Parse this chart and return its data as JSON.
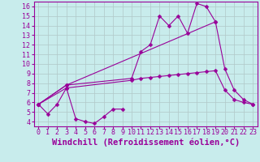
{
  "xlabel": "Windchill (Refroidissement éolien,°C)",
  "bg_color": "#c8ecec",
  "line_color": "#990099",
  "grid_color": "#b0c8c8",
  "xlim": [
    -0.5,
    23.5
  ],
  "ylim": [
    3.5,
    16.5
  ],
  "yticks": [
    4,
    5,
    6,
    7,
    8,
    9,
    10,
    11,
    12,
    13,
    14,
    15,
    16
  ],
  "xticks": [
    0,
    1,
    2,
    3,
    4,
    5,
    6,
    7,
    8,
    9,
    10,
    11,
    12,
    13,
    14,
    15,
    16,
    17,
    18,
    19,
    20,
    21,
    22,
    23
  ],
  "lines": [
    {
      "x": [
        0,
        1,
        2,
        3,
        4,
        5,
        6,
        7,
        8,
        9
      ],
      "y": [
        5.8,
        4.8,
        5.8,
        7.5,
        4.3,
        4.0,
        3.8,
        4.5,
        5.3,
        5.3
      ]
    },
    {
      "x": [
        0,
        3,
        10,
        11,
        12,
        13,
        14,
        15,
        16,
        17,
        18,
        19
      ],
      "y": [
        5.8,
        7.8,
        8.5,
        11.3,
        12.0,
        15.0,
        14.0,
        15.0,
        13.2,
        16.3,
        16.0,
        14.4
      ]
    },
    {
      "x": [
        0,
        3,
        19,
        20,
        21,
        22,
        23
      ],
      "y": [
        5.8,
        7.8,
        14.4,
        9.5,
        7.3,
        6.3,
        5.8
      ]
    },
    {
      "x": [
        0,
        3,
        10,
        11,
        12,
        13,
        14,
        15,
        16,
        17,
        18,
        19,
        20,
        21,
        22,
        23
      ],
      "y": [
        5.8,
        7.5,
        8.3,
        8.5,
        8.6,
        8.7,
        8.8,
        8.9,
        9.0,
        9.1,
        9.2,
        9.3,
        7.3,
        6.3,
        6.0,
        5.8
      ]
    }
  ],
  "font_family": "monospace",
  "tick_fontsize": 6,
  "xlabel_fontsize": 7.5
}
